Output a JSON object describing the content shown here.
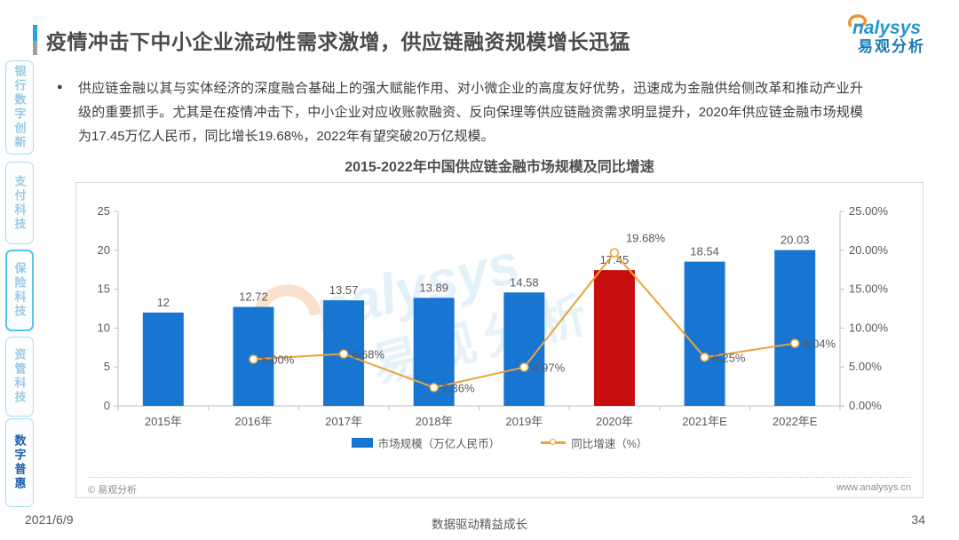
{
  "page": {
    "title": "疫情冲击下中小企业流动性需求激增，供应链融资规模增长迅猛",
    "date": "2021/6/9",
    "slogan": "数据驱动精益成长",
    "page_number": "34"
  },
  "logo": {
    "latin": "nalysys",
    "cn": "易观分析"
  },
  "watermark": {
    "latin": "nalysys",
    "cn": "易观分析"
  },
  "sidebar": {
    "items": [
      {
        "label": "银行数字创新"
      },
      {
        "label": "支付科技"
      },
      {
        "label": "保险科技"
      },
      {
        "label": "资管科技"
      },
      {
        "label": "数字普惠"
      }
    ]
  },
  "summary": {
    "bullet": "●",
    "text": "供应链金融以其与实体经济的深度融合基础上的强大赋能作用、对小微企业的高度友好优势，迅速成为金融供给侧改革和推动产业升级的重要抓手。尤其是在疫情冲击下，中小企业对应收账款融资、反向保理等供应链融资需求明显提升，2020年供应链金融市场规模为17.45万亿人民币，同比增长19.68%，2022年有望突破20万亿规模。"
  },
  "chart": {
    "source_note": "© 易观分析",
    "website": "www.analysys.cn"
  },
  "chart_data": {
    "type": "bar",
    "title": "2015-2022年中国供应链金融市场规模及同比增速",
    "categories": [
      "2015年",
      "2016年",
      "2017年",
      "2018年",
      "2019年",
      "2020年",
      "2021年E",
      "2022年E"
    ],
    "series": [
      {
        "name": "市场规模（万亿人民币）",
        "type": "bar",
        "values": [
          12,
          12.72,
          13.57,
          13.89,
          14.58,
          17.45,
          18.54,
          20.03
        ],
        "labels": [
          "12",
          "12.72",
          "13.57",
          "13.89",
          "14.58",
          "17.45",
          "18.54",
          "20.03"
        ]
      },
      {
        "name": "同比增速（%）",
        "type": "line",
        "values": [
          null,
          6.0,
          6.68,
          2.36,
          4.97,
          19.68,
          6.25,
          8.04
        ],
        "labels": [
          null,
          "6.00%",
          "6.68%",
          "2.36%",
          "4.97%",
          "19.68%",
          "6.25%",
          "8.04%"
        ]
      }
    ],
    "left_axis": {
      "min": 0,
      "max": 25,
      "step": 5,
      "ticks": [
        "0",
        "5",
        "10",
        "15",
        "20",
        "25"
      ]
    },
    "right_axis": {
      "min": 0,
      "max": 25,
      "step": 5,
      "ticks": [
        "0.00%",
        "5.00%",
        "10.00%",
        "15.00%",
        "20.00%",
        "25.00%"
      ]
    },
    "highlight_index": 5,
    "colors": {
      "bar": "#1876D2",
      "highlight": "#C80D0D",
      "line": "#E8A33C",
      "axis": "#bfbfbf",
      "label": "#595959"
    },
    "legend_position": "bottom",
    "grid": false
  }
}
